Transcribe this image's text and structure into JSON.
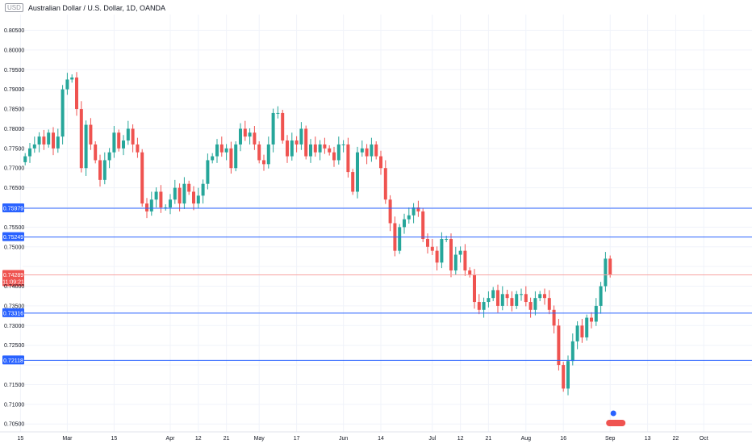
{
  "header": {
    "symbol_badge": "USD",
    "title": "Australian Dollar / U.S. Dollar, 1D, OANDA"
  },
  "colors": {
    "up": "#26a69a",
    "down": "#ef5350",
    "level_line": "#2962ff",
    "price_line": "#f7a3a1",
    "price_tag": "#ef5350",
    "grid": "#f0f3fa"
  },
  "chart_data": {
    "type": "candlestick",
    "title": "Australian Dollar / U.S. Dollar, 1D, OANDA",
    "ylim": [
      0.703,
      0.809
    ],
    "y_ticks": [
      0.705,
      0.71,
      0.715,
      0.72,
      0.725,
      0.73,
      0.735,
      0.74,
      0.745,
      0.75,
      0.755,
      0.76,
      0.765,
      0.77,
      0.775,
      0.78,
      0.785,
      0.79,
      0.795,
      0.8,
      0.805
    ],
    "x_ticks": [
      {
        "label": "15",
        "i": 3
      },
      {
        "label": "Mar",
        "i": 13
      },
      {
        "label": "15",
        "i": 23
      },
      {
        "label": "Apr",
        "i": 35
      },
      {
        "label": "12",
        "i": 41
      },
      {
        "label": "21",
        "i": 47
      },
      {
        "label": "May",
        "i": 54
      },
      {
        "label": "17",
        "i": 62
      },
      {
        "label": "Jun",
        "i": 72
      },
      {
        "label": "14",
        "i": 80
      },
      {
        "label": "Jul",
        "i": 91
      },
      {
        "label": "12",
        "i": 97
      },
      {
        "label": "21",
        "i": 103
      },
      {
        "label": "Aug",
        "i": 111
      },
      {
        "label": "16",
        "i": 119
      },
      {
        "label": "Sep",
        "i": 129
      },
      {
        "label": "13",
        "i": 137
      },
      {
        "label": "22",
        "i": 143
      },
      {
        "label": "Oct",
        "i": 149
      }
    ],
    "levels": [
      {
        "label": "0.75979",
        "value": 0.75979
      },
      {
        "label": "0.75249",
        "value": 0.75249
      },
      {
        "label": "0.73316",
        "value": 0.73316
      },
      {
        "label": "0.72118",
        "value": 0.72118
      }
    ],
    "current_price": {
      "value": 0.74289,
      "label": "0.74289",
      "countdown": "11:09:21"
    },
    "candles_start_index": 4,
    "closes": [
      0.773,
      0.775,
      0.776,
      0.778,
      0.776,
      0.779,
      0.775,
      0.778,
      0.79,
      0.7925,
      0.793,
      0.785,
      0.77,
      0.781,
      0.776,
      0.772,
      0.767,
      0.772,
      0.774,
      0.779,
      0.775,
      0.777,
      0.78,
      0.776,
      0.774,
      0.761,
      0.759,
      0.762,
      0.764,
      0.76,
      0.76,
      0.762,
      0.765,
      0.761,
      0.766,
      0.764,
      0.761,
      0.763,
      0.766,
      0.772,
      0.773,
      0.776,
      0.774,
      0.775,
      0.77,
      0.776,
      0.78,
      0.778,
      0.779,
      0.776,
      0.772,
      0.771,
      0.776,
      0.784,
      0.784,
      0.777,
      0.773,
      0.777,
      0.776,
      0.78,
      0.773,
      0.776,
      0.774,
      0.776,
      0.775,
      0.774,
      0.772,
      0.776,
      0.776,
      0.769,
      0.764,
      0.774,
      0.775,
      0.773,
      0.776,
      0.773,
      0.77,
      0.762,
      0.756,
      0.749,
      0.755,
      0.757,
      0.758,
      0.76,
      0.759,
      0.752,
      0.75,
      0.749,
      0.746,
      0.752,
      0.752,
      0.744,
      0.748,
      0.749,
      0.744,
      0.743,
      0.736,
      0.734,
      0.736,
      0.737,
      0.739,
      0.735,
      0.738,
      0.737,
      0.735,
      0.738,
      0.738,
      0.736,
      0.734,
      0.737,
      0.738,
      0.737,
      0.734,
      0.73,
      0.72,
      0.714,
      0.721,
      0.726,
      0.73,
      0.727,
      0.732,
      0.731,
      0.735,
      0.74,
      0.747,
      0.743
    ]
  }
}
